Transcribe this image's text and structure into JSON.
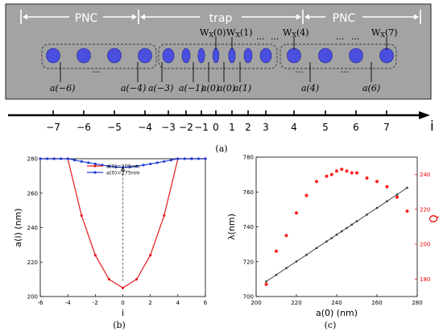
{
  "panel_a": {
    "region_labels": {
      "left": "PNC",
      "center": "trap",
      "right": "PNC"
    },
    "widths": [
      {
        "base": "W",
        "sub": "X",
        "arg": "(0)"
      },
      {
        "base": "W",
        "sub": "X",
        "arg": "(1)"
      },
      {
        "base": "W",
        "sub": "X",
        "arg": "(4)"
      },
      {
        "base": "W",
        "sub": "X",
        "arg": "(7)"
      }
    ],
    "period_labels": [
      "a(−6)",
      "a(−4)",
      "a(−3)",
      "a(−1)",
      "a(0)",
      "a(0)",
      "a(1)",
      "a(4)",
      "a(6)"
    ],
    "dots": [
      "···",
      "···",
      "···",
      "···",
      "···",
      "···",
      "···"
    ],
    "axis_ticks": [
      "−7",
      "−6",
      "−5",
      "−4",
      "−3",
      "−2",
      "−1",
      "0",
      "1",
      "2",
      "3",
      "4",
      "5",
      "6",
      "7"
    ],
    "axis_var": "i",
    "caption": "(a)"
  },
  "panel_b_caption": "(b)",
  "panel_c_caption": "(c)",
  "chart_data": [
    {
      "type": "line",
      "xlabel": "i",
      "ylabel": "a(i) (nm)",
      "xlim": [
        -6,
        6
      ],
      "ylim": [
        200,
        280
      ],
      "xticks": [
        "-6",
        "-4",
        "-2",
        "0",
        "2",
        "4",
        "6"
      ],
      "yticks": [
        "200",
        "220",
        "240",
        "260",
        "280"
      ],
      "legend_position": "top-center",
      "series": [
        {
          "name": "a(0)=205nm",
          "color": "#e41a1c",
          "x": [
            -6,
            -5,
            -4,
            -3,
            -2,
            -1,
            0,
            1,
            2,
            3,
            4,
            5,
            6
          ],
          "y": [
            280,
            280,
            280,
            247,
            224,
            210,
            205,
            210,
            224,
            247,
            280,
            280,
            280
          ]
        },
        {
          "name": "a(0)=275nm",
          "color": "#1f3fd6",
          "x": [
            -6,
            -5.5,
            -5,
            -4.5,
            -4,
            -3.5,
            -3,
            -2.5,
            -2,
            -1.5,
            -1,
            -0.5,
            0,
            0.5,
            1,
            1.5,
            2,
            2.5,
            3,
            3.5,
            4,
            4.5,
            5,
            5.5,
            6
          ],
          "y": [
            280,
            280,
            280,
            280,
            280,
            279.2,
            278.4,
            277.7,
            277.0,
            276.3,
            275.7,
            275.2,
            275,
            275.2,
            275.7,
            276.3,
            277.0,
            277.7,
            278.4,
            279.2,
            280,
            280,
            280,
            280,
            280
          ]
        }
      ],
      "annotation": "dashed vertical arrow at i=0 from a(i)=209 to a(i)=276"
    },
    {
      "type": "scatter",
      "xlabel": "a(0) (nm)",
      "ylabel_left": "λ(nm)",
      "ylabel_right": "Q",
      "xlim": [
        200,
        280
      ],
      "ylim_left": [
        700,
        780
      ],
      "ylim_right": [
        170,
        250
      ],
      "xticks": [
        "200",
        "220",
        "240",
        "260",
        "280"
      ],
      "yticks_left": [
        "700",
        "720",
        "740",
        "760",
        "780"
      ],
      "yticks_right": [
        "180",
        "200",
        "220",
        "240"
      ],
      "series": [
        {
          "axis": "left",
          "color": "#333333",
          "x": [
            205,
            210,
            215,
            220,
            225,
            230,
            235,
            237.5,
            240,
            242.5,
            245,
            247.5,
            250,
            255,
            260,
            265,
            270,
            275
          ],
          "y": [
            708.6,
            712.4,
            716.3,
            720.1,
            723.9,
            727.8,
            731.6,
            733.5,
            735.5,
            737.4,
            739.3,
            741.2,
            743.2,
            747.0,
            750.8,
            754.7,
            758.5,
            762.4
          ]
        },
        {
          "axis": "right",
          "color": "#ff2020",
          "x": [
            205,
            210,
            215,
            220,
            225,
            230,
            235,
            237.5,
            240,
            242.5,
            245,
            247.5,
            250,
            255,
            260,
            265,
            270,
            275
          ],
          "y": [
            177,
            196,
            205,
            218,
            228,
            236,
            239,
            240,
            242,
            243,
            242,
            241,
            241,
            238,
            236,
            233,
            227,
            219
          ]
        }
      ]
    }
  ]
}
